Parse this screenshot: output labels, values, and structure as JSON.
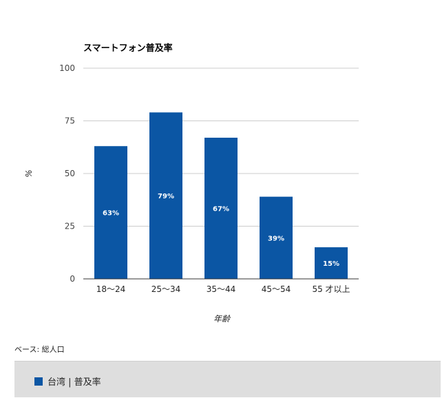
{
  "chart_data": {
    "type": "bar",
    "title": "スマートフォン普及率",
    "xlabel": "年齢",
    "ylabel": "%",
    "categories": [
      "18〜24",
      "25〜34",
      "35〜44",
      "45〜54",
      "55 才以上"
    ],
    "series": [
      {
        "name": "台湾 | 普及率",
        "values": [
          63,
          79,
          67,
          39,
          15
        ],
        "labels": [
          "63%",
          "79%",
          "67%",
          "39%",
          "15%"
        ],
        "color": "#0b56a4"
      }
    ],
    "yticks": [
      "0",
      "25",
      "50",
      "75",
      "100"
    ],
    "ylim": [
      0,
      100
    ],
    "grid": true,
    "legend_position": "bottom"
  },
  "note": "ベース: 総人口"
}
